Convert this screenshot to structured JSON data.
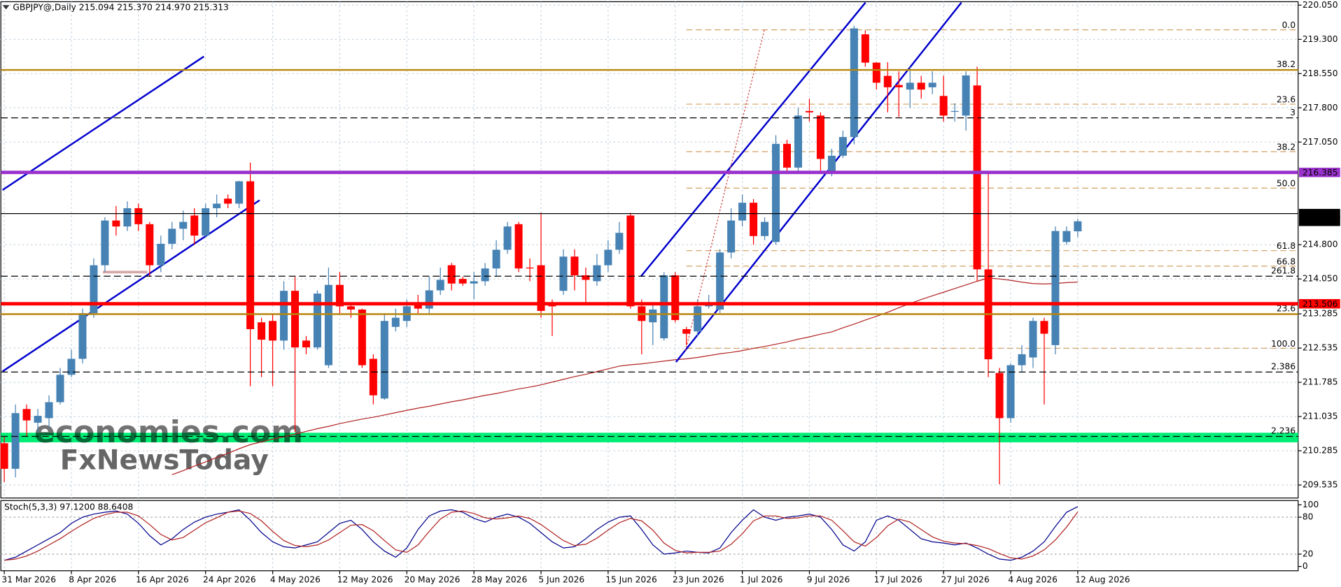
{
  "chart_data": [
    {
      "type": "candlestick",
      "title": "GBPJPY@,Daily  215.094 215.370 214.970 215.313",
      "categories": [
        "31 Mar 2026",
        null,
        null,
        null,
        null,
        null,
        "8 Apr 2026",
        null,
        null,
        null,
        null,
        null,
        "16 Apr 2026",
        null,
        null,
        null,
        null,
        null,
        "24 Apr 2026",
        null,
        null,
        null,
        null,
        null,
        "4 May 2026",
        null,
        null,
        null,
        null,
        null,
        "12 May 2026",
        null,
        null,
        null,
        null,
        null,
        "20 May 2026",
        null,
        null,
        null,
        null,
        null,
        "28 May 2026",
        null,
        null,
        null,
        null,
        null,
        "5 Jun 2026",
        null,
        null,
        null,
        null,
        null,
        "15 Jun 2026",
        null,
        null,
        null,
        null,
        null,
        "23 Jun 2026",
        null,
        null,
        null,
        null,
        null,
        "1 Jul 2026",
        null,
        null,
        null,
        null,
        null,
        "9 Jul 2026",
        null,
        null,
        null,
        null,
        null,
        "17 Jul 2026",
        null,
        null,
        null,
        null,
        null,
        "27 Jul 2026",
        null,
        null,
        null,
        null,
        null,
        "4 Aug 2026",
        null,
        null,
        null,
        null,
        null,
        "12 Aug 2026"
      ],
      "open": [
        210.45,
        209.89,
        211.2,
        210.9,
        211.0,
        211.35,
        211.95,
        212.3,
        213.3,
        214.35,
        215.33,
        215.2,
        215.6,
        215.25,
        214.35,
        214.82,
        215.15,
        215.44,
        215.0,
        215.6,
        215.81,
        215.7,
        216.19,
        213.1,
        213.13,
        212.7,
        213.79,
        212.7,
        212.55,
        212.16,
        213.92,
        213.45,
        213.38,
        212.3,
        211.43,
        213.0,
        213.13,
        213.5,
        213.4,
        213.8,
        214.35,
        214.05,
        213.95,
        214.0,
        214.28,
        214.69,
        215.25,
        214.3,
        214.35,
        213.5,
        213.79,
        214.54,
        214.13,
        214.0,
        214.35,
        214.69,
        215.44,
        213.45,
        213.1,
        212.75,
        214.13,
        212.95,
        212.9,
        213.45,
        213.38,
        214.63,
        215.33,
        215.72,
        214.99,
        214.86,
        217.01,
        216.49,
        217.73,
        217.63,
        216.41,
        216.75,
        217.16,
        219.41,
        218.79,
        218.5,
        218.3,
        218.2,
        218.35,
        218.25,
        218.06,
        217.72,
        217.63,
        218.29,
        214.26,
        211.99,
        211.0,
        212.16,
        212.33,
        213.13,
        212.6,
        214.86,
        215.094
      ],
      "high": [
        210.6,
        211.3,
        211.3,
        211.2,
        211.5,
        212.1,
        212.5,
        213.4,
        214.5,
        215.4,
        215.65,
        215.75,
        215.7,
        215.3,
        215.0,
        215.3,
        215.55,
        215.6,
        215.7,
        215.9,
        215.9,
        216.2,
        216.6,
        213.2,
        213.3,
        214.0,
        214.1,
        212.8,
        213.8,
        214.3,
        214.2,
        213.5,
        213.4,
        212.4,
        213.3,
        213.4,
        213.6,
        213.7,
        214.1,
        214.3,
        214.4,
        214.1,
        214.2,
        214.4,
        214.9,
        215.3,
        215.3,
        214.5,
        215.5,
        213.6,
        214.7,
        214.7,
        214.3,
        214.6,
        214.9,
        215.3,
        215.5,
        213.6,
        213.5,
        214.2,
        214.2,
        213.0,
        213.6,
        213.7,
        214.7,
        215.6,
        215.9,
        215.8,
        215.4,
        217.2,
        217.1,
        217.8,
        218.0,
        217.7,
        216.9,
        217.3,
        219.6,
        219.5,
        218.8,
        218.8,
        218.6,
        218.7,
        218.5,
        218.6,
        218.5,
        217.9,
        218.6,
        218.7,
        216.4,
        212.1,
        212.2,
        212.6,
        213.2,
        213.2,
        215.2,
        215.2,
        215.37
      ],
      "low": [
        209.6,
        209.7,
        210.6,
        210.7,
        210.8,
        211.3,
        211.9,
        212.2,
        213.2,
        214.2,
        215.0,
        215.1,
        215.1,
        214.1,
        214.2,
        214.7,
        214.9,
        214.8,
        214.95,
        215.4,
        215.6,
        215.6,
        211.7,
        211.9,
        211.7,
        212.5,
        210.7,
        212.4,
        212.5,
        212.1,
        213.3,
        213.2,
        212.1,
        211.3,
        211.4,
        212.9,
        213.0,
        213.3,
        213.3,
        213.7,
        213.8,
        213.9,
        213.6,
        213.9,
        214.1,
        214.6,
        214.2,
        214.0,
        213.2,
        212.8,
        213.7,
        213.8,
        213.5,
        213.9,
        214.2,
        214.6,
        213.4,
        212.4,
        212.6,
        212.7,
        213.1,
        212.6,
        212.8,
        213.4,
        213.3,
        214.5,
        215.2,
        214.8,
        214.9,
        214.8,
        216.4,
        216.4,
        217.5,
        216.4,
        216.3,
        216.7,
        217.0,
        218.7,
        218.2,
        217.7,
        217.6,
        217.8,
        218.0,
        218.1,
        217.5,
        217.5,
        217.3,
        214.0,
        211.9,
        209.55,
        210.9,
        212.0,
        212.1,
        211.3,
        212.4,
        214.8,
        214.97
      ],
      "close": [
        209.89,
        211.11,
        210.95,
        211.05,
        211.35,
        211.95,
        212.3,
        213.3,
        214.35,
        215.33,
        215.2,
        215.6,
        215.25,
        214.35,
        214.82,
        215.15,
        215.3,
        215.0,
        215.6,
        215.7,
        215.7,
        216.19,
        212.95,
        212.72,
        212.7,
        213.79,
        212.55,
        212.55,
        213.73,
        213.92,
        213.45,
        213.38,
        212.16,
        211.5,
        213.13,
        213.2,
        213.45,
        213.4,
        213.8,
        214.03,
        213.95,
        213.95,
        214.0,
        214.28,
        214.69,
        215.2,
        214.28,
        214.28,
        213.35,
        213.45,
        214.54,
        214.13,
        214.03,
        214.35,
        214.69,
        215.06,
        213.45,
        213.13,
        213.38,
        214.13,
        213.15,
        212.85,
        213.45,
        213.5,
        214.63,
        215.33,
        215.72,
        214.99,
        215.3,
        217.01,
        216.49,
        217.63,
        217.7,
        216.68,
        216.75,
        217.16,
        219.54,
        218.79,
        218.35,
        218.25,
        218.25,
        218.35,
        218.2,
        218.35,
        217.63,
        217.73,
        218.51,
        214.26,
        212.29,
        211.0,
        212.16,
        212.4,
        213.13,
        212.85,
        215.1,
        215.1,
        215.313
      ],
      "up_color": "#4682b4",
      "down_color": "#ff0000",
      "price_tag_color": "#000000",
      "moving_average": {
        "color": "#b22222",
        "values": [
          null,
          null,
          null,
          null,
          null,
          null,
          null,
          null,
          null,
          null,
          null,
          null,
          null,
          null,
          null,
          209.76,
          209.85,
          209.95,
          210.04,
          210.14,
          210.23,
          210.33,
          210.42,
          210.48,
          210.54,
          210.59,
          210.65,
          210.71,
          210.77,
          210.82,
          210.88,
          210.93,
          210.98,
          211.02,
          211.07,
          211.12,
          211.17,
          211.22,
          211.26,
          211.31,
          211.36,
          211.4,
          211.45,
          211.5,
          211.54,
          211.59,
          211.64,
          211.68,
          211.73,
          211.79,
          211.85,
          211.91,
          211.96,
          212.02,
          212.08,
          212.14,
          212.17,
          212.19,
          212.22,
          212.25,
          212.28,
          212.3,
          212.33,
          212.37,
          212.41,
          212.44,
          212.48,
          212.53,
          212.57,
          212.62,
          212.67,
          212.73,
          212.78,
          212.84,
          212.89,
          212.98,
          213.06,
          213.15,
          213.23,
          213.32,
          213.42,
          213.51,
          213.6,
          213.68,
          213.76,
          213.84,
          213.92,
          214.0,
          214.07,
          214.05,
          214.02,
          213.98,
          213.95,
          213.94,
          213.95,
          213.97,
          213.98
        ]
      },
      "ylim": [
        209.25,
        220.125
      ],
      "yticks": [
        {
          "value": 220.05,
          "label": "220.050"
        },
        {
          "value": 219.3,
          "label": "219.300"
        },
        {
          "value": 218.55,
          "label": "218.550"
        },
        {
          "value": 217.8,
          "label": "217.800"
        },
        {
          "value": 217.05,
          "label": "217.050"
        },
        {
          "value": 214.8,
          "label": "214.800"
        },
        {
          "value": 214.05,
          "label": "214.050"
        },
        213.285,
        212.535,
        211.785,
        211.035,
        210.285,
        209.535
      ],
      "grid": true,
      "zones": [
        {
          "from": 210.47,
          "to": 210.68,
          "color": "#00ee76"
        }
      ],
      "levels": [
        {
          "value": 218.63,
          "label": "38.2",
          "color": "#b8860b",
          "width": 2,
          "style": "solid"
        },
        {
          "value": 213.28,
          "label": "23.6",
          "color": "#b8860b",
          "width": 2,
          "style": "solid"
        },
        {
          "value": 217.58,
          "label": "3",
          "color": "#000000",
          "width": 1,
          "style": "dashed"
        },
        {
          "value": 214.11,
          "label": "261.8",
          "color": "#000000",
          "width": 1,
          "style": "dashed"
        },
        {
          "value": 212.01,
          "label": "2.386",
          "color": "#000000",
          "width": 1,
          "style": "dashed"
        },
        {
          "value": 210.6,
          "label": "2.236",
          "color": "#000000",
          "width": 1,
          "style": "dashed"
        },
        {
          "value": 216.385,
          "color": "#9932cc",
          "width": 4,
          "style": "solid",
          "tag": true
        },
        {
          "value": 213.506,
          "color": "#ff0000",
          "width": 4,
          "style": "solid",
          "tag": true
        },
        {
          "value": 215.482,
          "color": "#000000",
          "width": 1,
          "style": "solid",
          "tag": true
        }
      ],
      "fibonacci": {
        "color": "#d2a060",
        "levels": [
          {
            "label": "0.0",
            "value": 219.51
          },
          {
            "label": "23.6",
            "value": 217.88
          },
          {
            "label": "38.2",
            "value": 216.84
          },
          {
            "label": "50.0",
            "value": 216.04
          },
          {
            "label": "61.8",
            "value": 214.67
          },
          {
            "label": "66.8",
            "value": 214.33
          },
          {
            "label": "100.0",
            "value": 212.53
          }
        ]
      },
      "watermarks": [
        "economies.com",
        "FxNewsToday"
      ]
    },
    {
      "type": "stochastic",
      "title": "Stoch(5,3,3) 97.1200 88.6408",
      "ylim": [
        0,
        100
      ],
      "yticks": [
        0,
        20,
        80,
        100
      ],
      "series": [
        {
          "color": "#00008b",
          "values": [
            10,
            15,
            25,
            35,
            45,
            55,
            70,
            80,
            85,
            88,
            90,
            85,
            70,
            50,
            35,
            45,
            60,
            72,
            80,
            85,
            88,
            92,
            75,
            55,
            40,
            32,
            30,
            35,
            40,
            55,
            70,
            75,
            60,
            40,
            25,
            15,
            30,
            60,
            82,
            90,
            92,
            88,
            78,
            72,
            80,
            85,
            80,
            70,
            55,
            40,
            30,
            32,
            45,
            60,
            72,
            80,
            82,
            60,
            35,
            20,
            22,
            25,
            23,
            22,
            30,
            55,
            75,
            92,
            80,
            75,
            80,
            82,
            85,
            80,
            60,
            35,
            25,
            40,
            75,
            82,
            75,
            60,
            45,
            40,
            38,
            35,
            38,
            30,
            20,
            12,
            10,
            15,
            25,
            40,
            65,
            88,
            97.12
          ]
        },
        {
          "color": "#b22222",
          "values": [
            10,
            12,
            17,
            25,
            35,
            45,
            57,
            68,
            78,
            84,
            88,
            88,
            82,
            68,
            52,
            43,
            47,
            59,
            71,
            79,
            88,
            90,
            86,
            74,
            57,
            42,
            34,
            32,
            35,
            43,
            55,
            67,
            68,
            58,
            42,
            27,
            23,
            35,
            57,
            77,
            88,
            90,
            86,
            79,
            77,
            79,
            82,
            78,
            68,
            55,
            42,
            34,
            36,
            46,
            59,
            71,
            78,
            74,
            59,
            38,
            26,
            22,
            23,
            23,
            25,
            36,
            53,
            74,
            82,
            82,
            78,
            79,
            82,
            82,
            75,
            58,
            40,
            33,
            47,
            66,
            77,
            72,
            60,
            48,
            41,
            38,
            37,
            34,
            29,
            21,
            14,
            12,
            17,
            27,
            43,
            64,
            88.6408
          ]
        }
      ]
    }
  ]
}
